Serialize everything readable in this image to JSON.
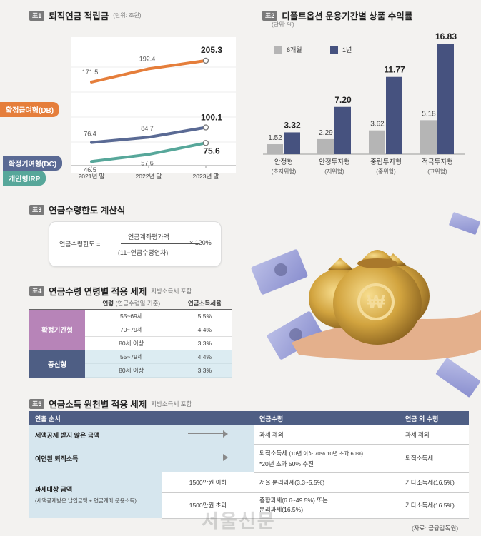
{
  "t1": {
    "badge": "표1",
    "title": "퇴직연금 적립금",
    "unit": "(단위: 조원)"
  },
  "t2": {
    "badge": "표2",
    "title": "디폴트옵션 운용기간별 상품 수익률",
    "unit": "(단위: %)"
  },
  "t3": {
    "badge": "표3",
    "title": "연금수령한도 계산식",
    "label": "연금수령한도 =",
    "numerator": "연금계좌평가액",
    "denominator": "(11−연금수령연차)",
    "multiplier": "× 120%"
  },
  "t4": {
    "badge": "표4",
    "title": "연금수령 연령별 적용 세제",
    "note": "지방소득세 포함",
    "head_age": "연령",
    "head_age_note": "(연금수령일 기준)",
    "head_rate": "연금소득세율",
    "groups": [
      {
        "name": "확정기간형",
        "color": "#b784b8",
        "rows": [
          {
            "age": "55~69세",
            "rate": "5.5%"
          },
          {
            "age": "70~79세",
            "rate": "4.4%"
          },
          {
            "age": "80세 이상",
            "rate": "3.3%"
          }
        ]
      },
      {
        "name": "종신형",
        "color": "#4e5e84",
        "rows": [
          {
            "age": "55~79세",
            "rate": "4.4%"
          },
          {
            "age": "80세 이상",
            "rate": "3.3%"
          }
        ]
      }
    ]
  },
  "t5": {
    "badge": "표5",
    "title": "연금소득 원천별 적용 세제",
    "note": "지방소득세 포함",
    "h1": "인출 순서",
    "h2": "연금수령",
    "h3": "연금 외 수령",
    "r1": {
      "label": "세액공제 받지 않은 금액",
      "c2": "과세 제외",
      "c3": "과세 제외"
    },
    "r2": {
      "label": "이연된 퇴직소득",
      "c2a": "퇴직소득세",
      "c2b": "(10년 이하 70% 10년 초과 60%)",
      "c2c": "*20년 초과 50% 추진",
      "c3": "퇴직소득세"
    },
    "r3": {
      "label": "과세대상 금액",
      "sub": "(세액공제받은 납입금액 + 연금계좌 운용소득)",
      "a_cond": "1500만원 이하",
      "a_c2": "저율 분리과세(3.3~5.5%)",
      "a_c3": "기타소득세(16.5%)",
      "b_cond": "1500만원 초과",
      "b_c2a": "종합과세(6.6~49.5%) 또는",
      "b_c2b": "분리과세(16.5%)",
      "b_c3": "기타소득세(16.5%)"
    },
    "source": "(자료: 금융감독원)"
  },
  "watermark": "서울신문",
  "chart_data": [
    {
      "type": "line",
      "title": "퇴직연금 적립금",
      "unit": "(단위: 조원)",
      "categories": [
        "2021년 말",
        "2022년 말",
        "2023년 말"
      ],
      "series": [
        {
          "name": "확정급여형(DB)",
          "color": "#e57e3b",
          "values": [
            171.5,
            192.4,
            205.3
          ]
        },
        {
          "name": "확정기여형(DC)",
          "color": "#5a6a94",
          "values": [
            76.4,
            84.7,
            100.1
          ]
        },
        {
          "name": "개인형IRP",
          "color": "#57a79a",
          "values": [
            46.5,
            57.6,
            75.6
          ]
        }
      ]
    },
    {
      "type": "bar",
      "title": "디폴트옵션 운용기간별 상품 수익률",
      "unit": "(단위: %)",
      "categories": [
        "안정형",
        "안정투자형",
        "중립투자형",
        "적극투자형"
      ],
      "sublabels": [
        "(초저위험)",
        "(저위험)",
        "(중위험)",
        "(고위험)"
      ],
      "series": [
        {
          "name": "6개월",
          "color": "#b5b5b5",
          "values": [
            1.52,
            2.29,
            3.62,
            5.18
          ]
        },
        {
          "name": "1년",
          "color": "#46527f",
          "values": [
            3.32,
            7.2,
            11.77,
            16.83
          ]
        }
      ],
      "value_labels": [
        [
          "1.52",
          "2.29",
          "3.62",
          "5.18"
        ],
        [
          "3.32",
          "7.20",
          "11.77",
          "16.83"
        ]
      ]
    }
  ]
}
